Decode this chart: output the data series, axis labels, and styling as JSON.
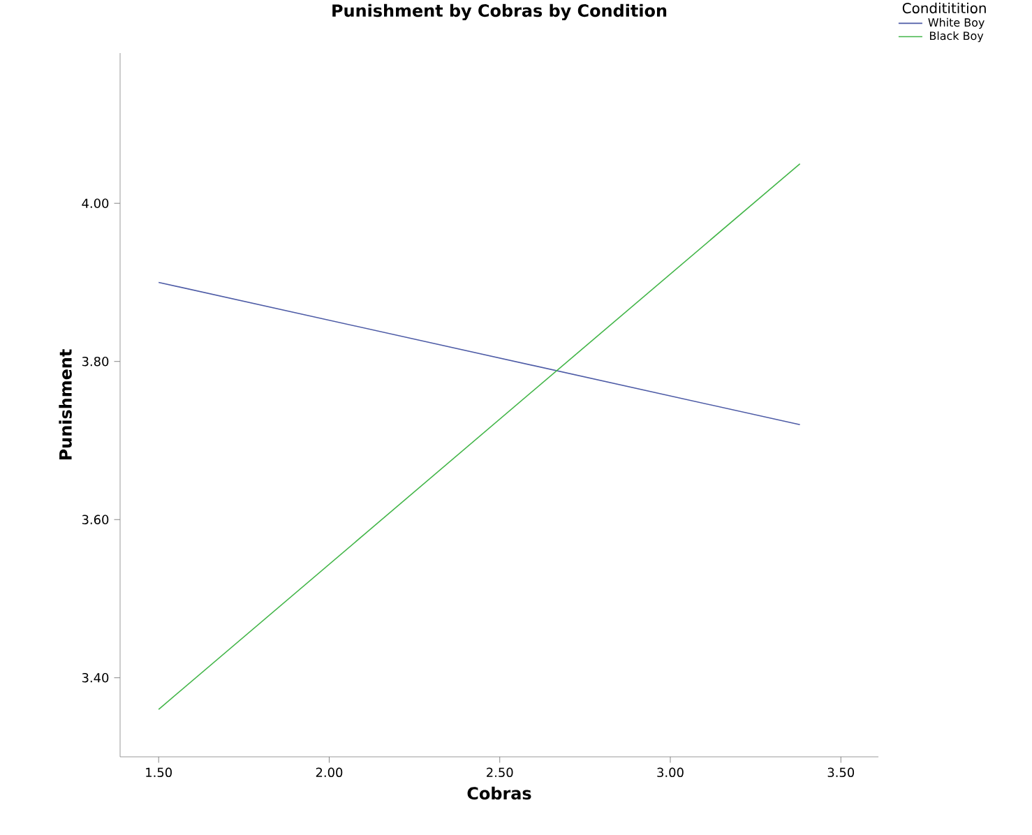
{
  "chart_data": {
    "type": "line",
    "title": "Punishment by Cobras by Condition",
    "xlabel": "Cobras",
    "ylabel": "Punishment",
    "legend_title": "Condititition",
    "legend": "top right",
    "xlim": [
      1.387,
      3.61
    ],
    "xticks": [
      {
        "value": 1.5,
        "label": "1.50"
      },
      {
        "value": 2.0,
        "label": "2.00"
      },
      {
        "value": 2.5,
        "label": "2.50"
      },
      {
        "value": 3.0,
        "label": "3.00"
      },
      {
        "value": 3.5,
        "label": "3.50"
      }
    ],
    "ylim": [
      3.3,
      4.19
    ],
    "yticks": [
      {
        "value": 3.4,
        "label": "3.40"
      },
      {
        "value": 3.6,
        "label": "3.60"
      },
      {
        "value": 3.8,
        "label": "3.80"
      },
      {
        "value": 4.0,
        "label": "4.00"
      }
    ],
    "x": [
      1.5,
      3.38
    ],
    "series": [
      {
        "name": "White Boy",
        "color": "#4d5ba6",
        "values": [
          3.9,
          3.72
        ]
      },
      {
        "name": "Black Boy",
        "color": "#41b547",
        "values": [
          3.36,
          4.05
        ]
      }
    ]
  }
}
